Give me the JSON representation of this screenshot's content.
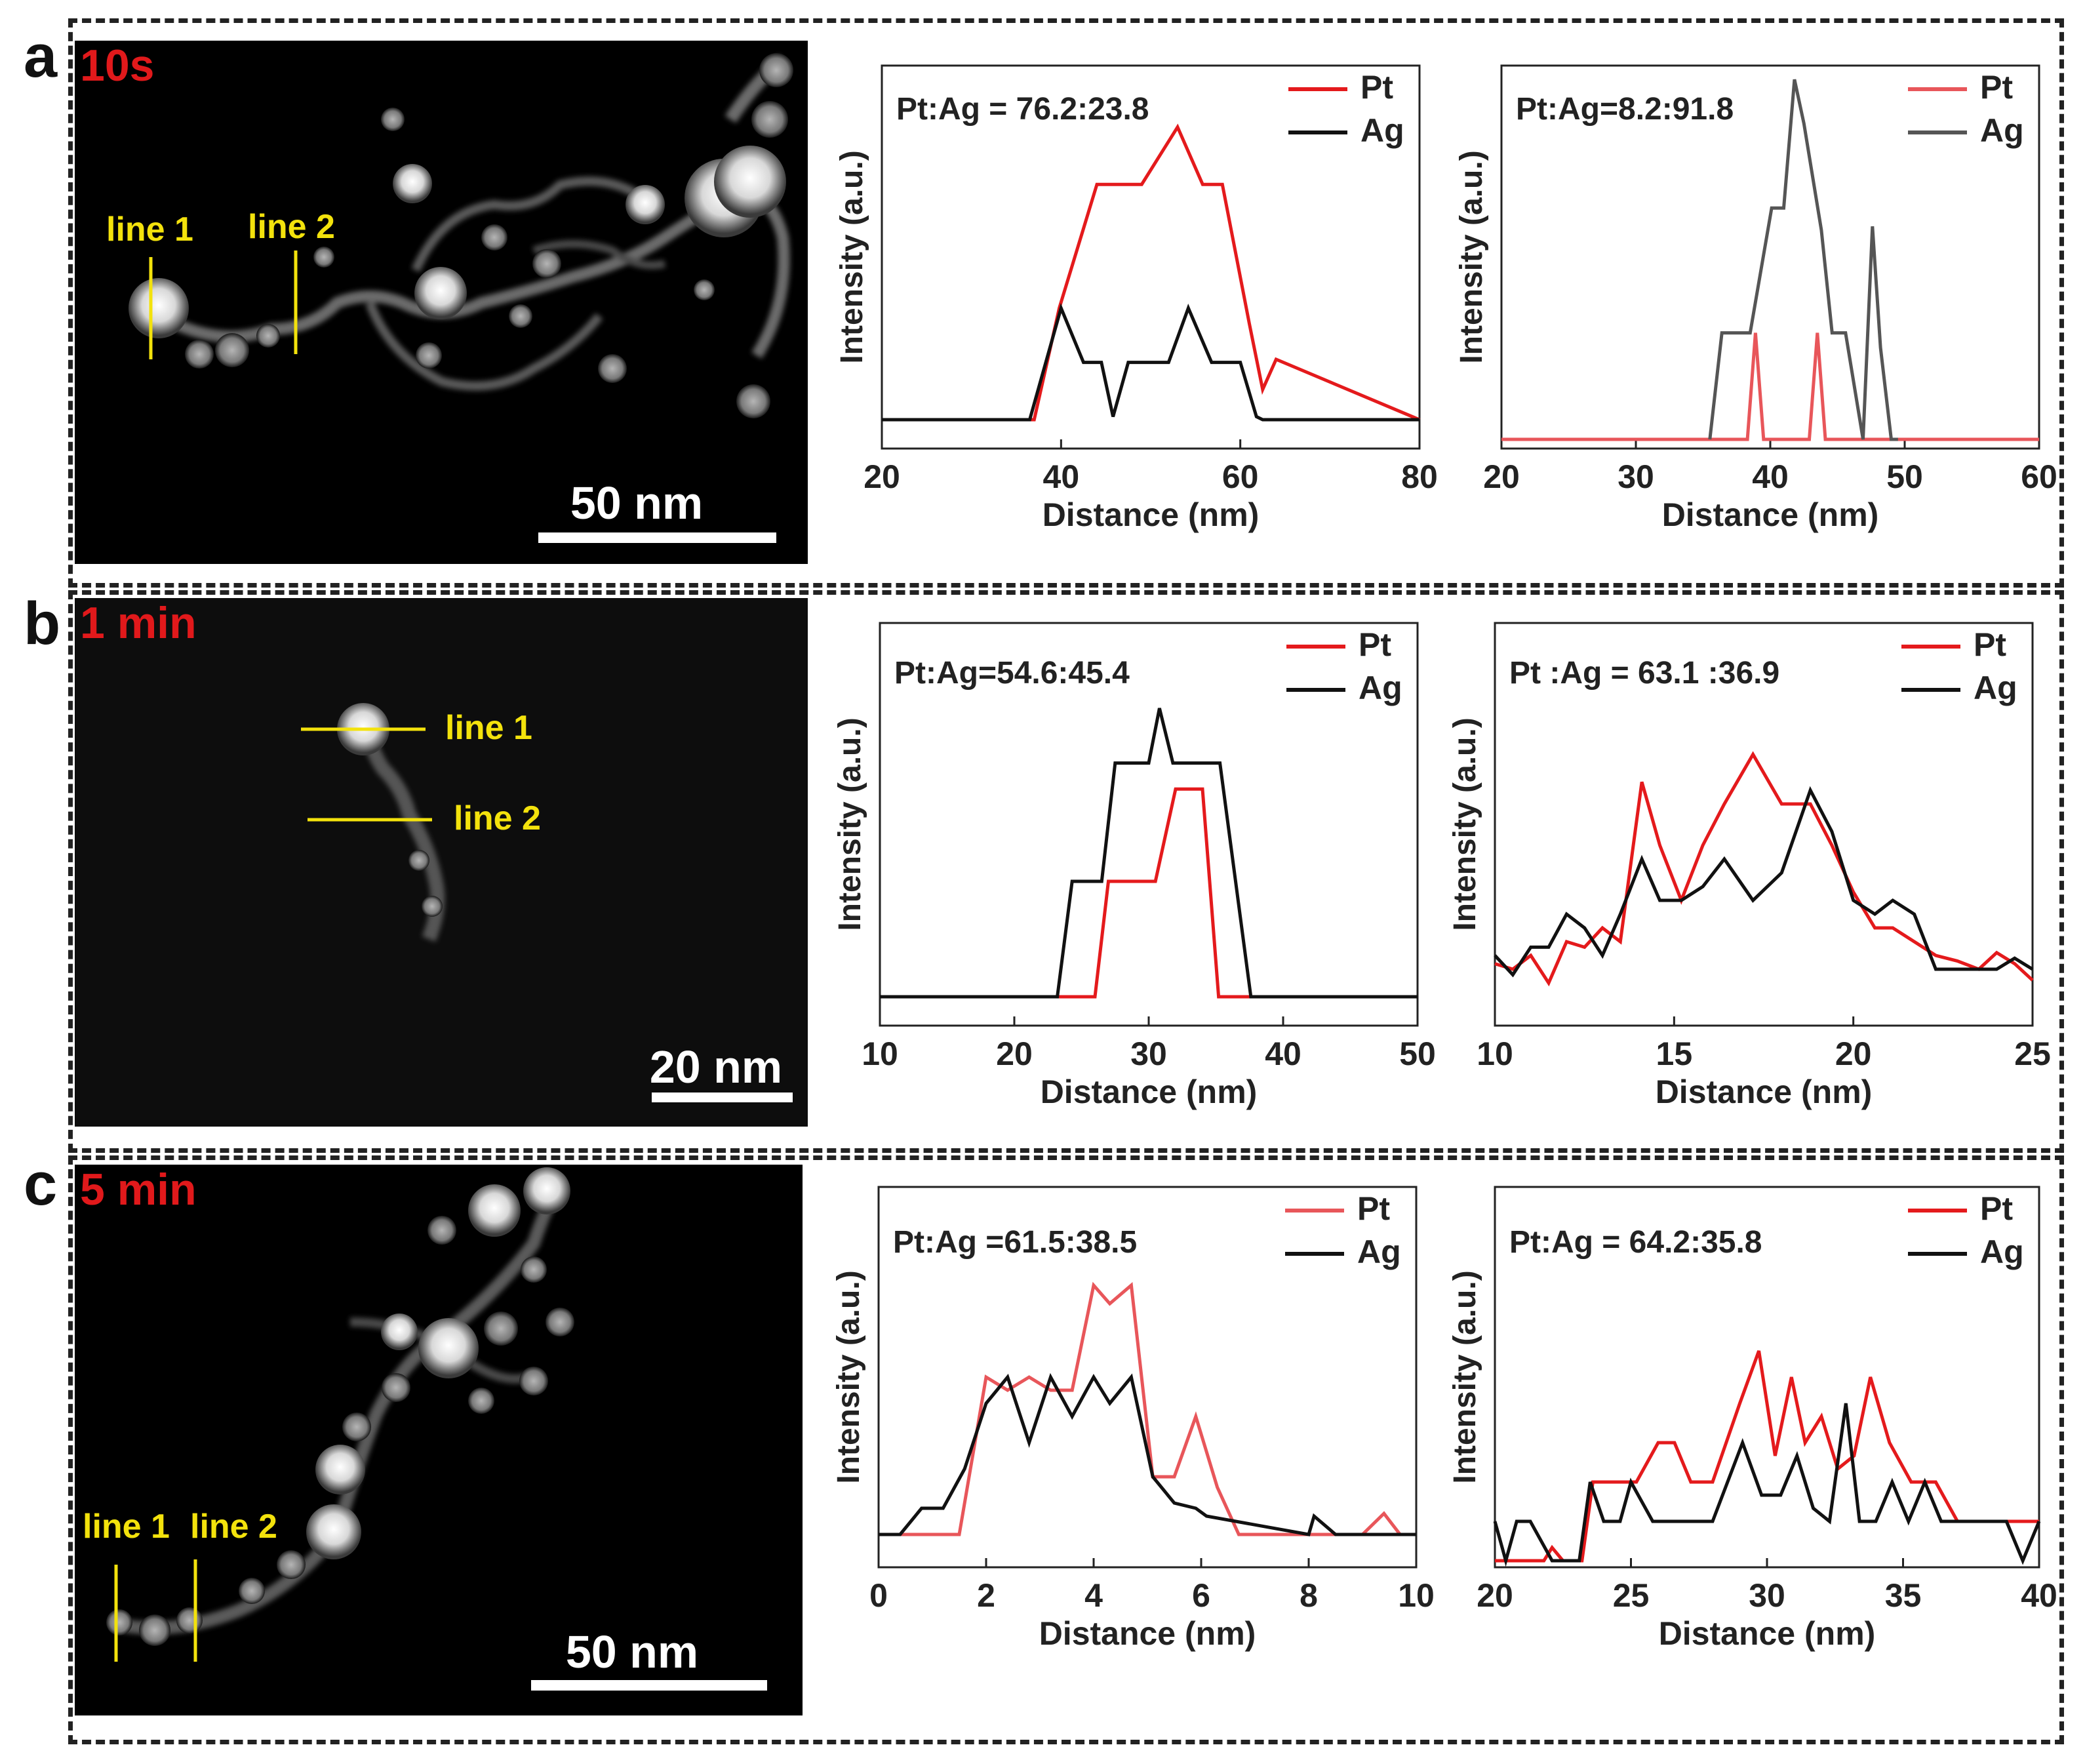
{
  "panels": [
    {
      "letter": "a",
      "time": "10s",
      "scale": "50 nm",
      "line1": "line 1",
      "line2": "line 2"
    },
    {
      "letter": "b",
      "time": "1 min",
      "scale": "20 nm",
      "line1": "line 1",
      "line2": "line 2"
    },
    {
      "letter": "c",
      "time": "5 min",
      "scale": "50 nm",
      "line1": "line 1",
      "line2": "line 2"
    }
  ],
  "colors": {
    "pt": "#e41a1c",
    "pt_light": "#e8565a",
    "ag": "#111111",
    "ag_grey": "#555555",
    "label": "#f3e20c"
  },
  "chart_data": [
    {
      "id": "a1",
      "type": "line",
      "annotation": "Pt:Ag = 76.2:23.8",
      "xlabel": "Distance (nm)",
      "ylabel": "Intensity (a.u.)",
      "xlim": [
        20,
        80
      ],
      "ylim": [
        0,
        100
      ],
      "xticks": [
        20,
        40,
        60,
        80
      ],
      "xtick_labels": [
        "20",
        "40",
        "60",
        "80"
      ],
      "series": [
        {
          "name": "Pt",
          "x": [
            20,
            37,
            39.8,
            44,
            49,
            53,
            55.8,
            58,
            61,
            62.5,
            64,
            80
          ],
          "y": [
            0,
            0,
            37,
            78,
            78,
            97,
            78,
            78,
            32,
            10,
            20,
            0
          ]
        },
        {
          "name": "Ag",
          "x": [
            20,
            36.5,
            40,
            42.5,
            44.5,
            45.8,
            47.5,
            52,
            54.2,
            56.8,
            60,
            61.8,
            62.5,
            80
          ],
          "y": [
            0,
            0,
            37,
            19,
            19,
            1,
            19,
            19,
            37,
            19,
            19,
            1,
            0,
            0
          ]
        }
      ]
    },
    {
      "id": "a2",
      "type": "line",
      "annotation": "Pt:Ag=8.2:91.8",
      "xlabel": "Distance (nm)",
      "ylabel": "Intensity (a.u.)",
      "xlim": [
        20,
        60
      ],
      "ylim": [
        0,
        100
      ],
      "xticks": [
        20,
        30,
        40,
        50,
        60
      ],
      "xtick_labels": [
        "20",
        "30",
        "40",
        "50",
        "60"
      ],
      "series": [
        {
          "name": "Pt",
          "x": [
            20,
            38.3,
            38.9,
            39.5,
            42.9,
            43.5,
            44.1,
            60
          ],
          "y": [
            0,
            0,
            29,
            0,
            0,
            29,
            0,
            0
          ]
        },
        {
          "name": "Ag",
          "x": [
            35.5,
            36.4,
            38.5,
            40.1,
            41,
            41.8,
            42.5,
            43.8,
            44.6,
            45.6,
            46.9,
            47.6,
            48.2,
            49,
            49.5
          ],
          "y": [
            0,
            29,
            29,
            63,
            63,
            98,
            86,
            57,
            29,
            29,
            0,
            58,
            25,
            0,
            0
          ]
        }
      ]
    },
    {
      "id": "b1",
      "type": "line",
      "annotation": "Pt:Ag=54.6:45.4",
      "xlabel": "Distance (nm)",
      "ylabel": "Intensity (a.u.)",
      "xlim": [
        10,
        50
      ],
      "ylim": [
        0,
        100
      ],
      "xticks": [
        10,
        20,
        30,
        40,
        50
      ],
      "xtick_labels": [
        "10",
        "20",
        "30",
        "40",
        "50"
      ],
      "series": [
        {
          "name": "Pt",
          "x": [
            10,
            26,
            27,
            30.5,
            32,
            34,
            35.2,
            50
          ],
          "y": [
            0,
            0,
            40,
            40,
            72,
            72,
            0,
            0
          ]
        },
        {
          "name": "Ag",
          "x": [
            10,
            23.2,
            24.3,
            26.5,
            27.5,
            30,
            30.8,
            31.8,
            35.3,
            37.6,
            50
          ],
          "y": [
            0,
            0,
            40,
            40,
            81,
            81,
            100,
            81,
            81,
            0,
            0
          ]
        }
      ]
    },
    {
      "id": "b2",
      "type": "line",
      "annotation": "Pt :Ag = 63.1 :36.9",
      "xlabel": "Distance (nm)",
      "ylabel": "Intensity (a.u.)",
      "xlim": [
        10,
        25
      ],
      "ylim": [
        0,
        100
      ],
      "xticks": [
        10,
        15,
        20,
        25
      ],
      "xtick_labels": [
        "10",
        "15",
        "20",
        "25"
      ],
      "series": [
        {
          "name": "Pt",
          "x": [
            10,
            10.5,
            11,
            11.5,
            12,
            12.5,
            13,
            13.5,
            14.1,
            14.6,
            15.2,
            15.8,
            16.4,
            17.2,
            18,
            18.8,
            19.4,
            20,
            20.6,
            21.1,
            21.7,
            22.3,
            22.9,
            23.5,
            24,
            24.5,
            25
          ],
          "y": [
            12,
            10,
            15,
            5,
            20,
            18,
            25,
            20,
            78,
            55,
            35,
            55,
            70,
            88,
            70,
            70,
            55,
            38,
            25,
            25,
            20,
            15,
            13,
            10,
            16,
            12,
            6
          ]
        },
        {
          "name": "Ag",
          "x": [
            10,
            10.5,
            11,
            11.5,
            12,
            12.5,
            13,
            13.5,
            14.1,
            14.6,
            15.2,
            15.8,
            16.4,
            17.2,
            18,
            18.8,
            19.4,
            20,
            20.6,
            21.1,
            21.7,
            22.3,
            22.8,
            24,
            24.5,
            25
          ],
          "y": [
            15,
            8,
            18,
            18,
            30,
            25,
            15,
            30,
            50,
            35,
            35,
            40,
            50,
            35,
            45,
            75,
            60,
            35,
            30,
            35,
            30,
            10,
            10,
            10,
            14,
            10
          ]
        }
      ]
    },
    {
      "id": "c1",
      "type": "line",
      "annotation": "Pt:Ag =61.5:38.5",
      "xlabel": "Distance (nm)",
      "ylabel": "Intensity (a.u.)",
      "xlim": [
        0,
        10
      ],
      "ylim": [
        0,
        100
      ],
      "xticks": [
        0,
        2,
        4,
        6,
        8,
        10
      ],
      "xtick_labels": [
        "0",
        "2",
        "4",
        "6",
        "8",
        "10"
      ],
      "series": [
        {
          "name": "Pt",
          "x": [
            0,
            1.5,
            2,
            2.4,
            2.8,
            3.2,
            3.6,
            4,
            4.3,
            4.7,
            5.1,
            5.5,
            5.9,
            6.3,
            6.7,
            9,
            9.4,
            9.7,
            10
          ],
          "y": [
            0,
            0,
            60,
            55,
            60,
            55,
            55,
            95,
            88,
            95,
            22,
            22,
            45,
            18,
            0,
            0,
            8,
            0,
            0
          ]
        },
        {
          "name": "Ag",
          "x": [
            0,
            0.4,
            0.8,
            1.2,
            1.6,
            2,
            2.4,
            2.8,
            3.2,
            3.6,
            4,
            4.3,
            4.7,
            5.1,
            5.5,
            5.9,
            6.1,
            8,
            8.1,
            8.5,
            10
          ],
          "y": [
            0,
            0,
            10,
            10,
            25,
            50,
            60,
            35,
            60,
            45,
            60,
            50,
            60,
            22,
            12,
            10,
            7,
            0,
            7,
            0,
            0
          ]
        }
      ]
    },
    {
      "id": "c2",
      "type": "line",
      "annotation": "Pt:Ag = 64.2:35.8",
      "xlabel": "Distance (nm)",
      "ylabel": "Intensity (a.u.)",
      "xlim": [
        20,
        40
      ],
      "ylim": [
        0,
        100
      ],
      "xticks": [
        20,
        25,
        30,
        35,
        40
      ],
      "xtick_labels": [
        "20",
        "25",
        "30",
        "35",
        "40"
      ],
      "series": [
        {
          "name": "Pt",
          "x": [
            20,
            21.8,
            22.1,
            22.5,
            23.2,
            23.6,
            25.2,
            26,
            26.6,
            27.2,
            28,
            29,
            29.7,
            30.3,
            30.9,
            31.4,
            32,
            32.6,
            33.2,
            33.8,
            34.5,
            35.3,
            36.2,
            37,
            38,
            40
          ],
          "y": [
            0,
            0,
            5,
            0,
            0,
            30,
            30,
            45,
            45,
            30,
            30,
            60,
            80,
            40,
            70,
            45,
            55,
            35,
            40,
            70,
            45,
            30,
            30,
            15,
            15,
            15
          ]
        },
        {
          "name": "Ag",
          "x": [
            20,
            20.4,
            20.8,
            21.3,
            22.1,
            23.1,
            23.5,
            24,
            24.6,
            25,
            25.8,
            28,
            29.1,
            29.8,
            30.5,
            31.1,
            31.7,
            32.3,
            32.9,
            33.4,
            34,
            34.6,
            35.2,
            35.8,
            36.4,
            37,
            38.8,
            39.4,
            40
          ],
          "y": [
            15,
            0,
            15,
            15,
            0,
            0,
            30,
            15,
            15,
            30,
            15,
            15,
            45,
            25,
            25,
            40,
            20,
            15,
            60,
            15,
            15,
            30,
            15,
            30,
            15,
            15,
            15,
            0,
            15
          ]
        }
      ]
    }
  ]
}
